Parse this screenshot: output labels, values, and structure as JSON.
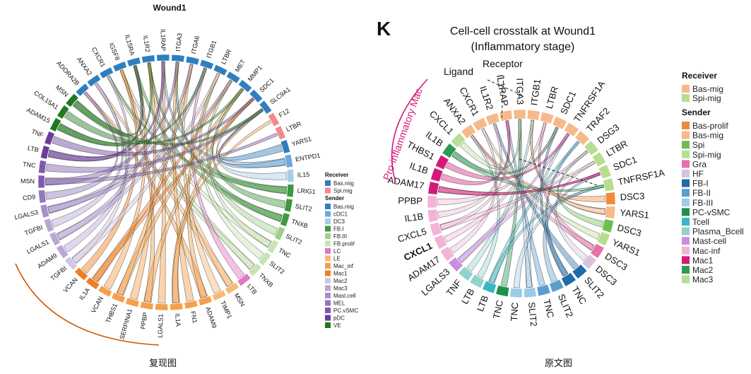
{
  "left": {
    "title": "Wound1",
    "caption": "复现图",
    "legend_receiver_title": "Receiver",
    "legend_sender_title": "Sender",
    "receivers": [
      {
        "name": "Bas.mig",
        "color": "#2f7fbf"
      },
      {
        "name": "Spi.mig",
        "color": "#f08a8f"
      }
    ],
    "senders": [
      {
        "name": "Bas.mig",
        "color": "#2f7fbf"
      },
      {
        "name": "cDC1",
        "color": "#6fa8dc"
      },
      {
        "name": "DC3",
        "color": "#a9cbe8"
      },
      {
        "name": "FB.I",
        "color": "#3c9a3c"
      },
      {
        "name": "FB.III",
        "color": "#9fd08a"
      },
      {
        "name": "FB.prolif",
        "color": "#c9e4b4"
      },
      {
        "name": "LC",
        "color": "#e377c2"
      },
      {
        "name": "LE",
        "color": "#f9b977"
      },
      {
        "name": "Mac_inf",
        "color": "#f5a04a"
      },
      {
        "name": "Mac1",
        "color": "#ee7f20"
      },
      {
        "name": "Mac2",
        "color": "#d3c6e3"
      },
      {
        "name": "Mac3",
        "color": "#b9a6d6"
      },
      {
        "name": "Mast.cell",
        "color": "#a590c9"
      },
      {
        "name": "MEL",
        "color": "#9278bd"
      },
      {
        "name": "PC.vSMC",
        "color": "#7e5aae"
      },
      {
        "name": "pDC",
        "color": "#6a3d9a"
      },
      {
        "name": "VE",
        "color": "#1f7a1f"
      }
    ],
    "sectors": [
      {
        "label": "ADORA2B",
        "color": "#2f7fbf"
      },
      {
        "label": "ANXA2",
        "color": "#2f7fbf"
      },
      {
        "label": "CXCR1",
        "color": "#2f7fbf"
      },
      {
        "label": "IGSF8",
        "color": "#2f7fbf"
      },
      {
        "label": "IL15RA",
        "color": "#2f7fbf"
      },
      {
        "label": "IL1R2",
        "color": "#2f7fbf"
      },
      {
        "label": "IL1RAP",
        "color": "#2f7fbf"
      },
      {
        "label": "ITGA3",
        "color": "#2f7fbf"
      },
      {
        "label": "ITGA6",
        "color": "#2f7fbf"
      },
      {
        "label": "ITGB1",
        "color": "#2f7fbf"
      },
      {
        "label": "LTBR",
        "color": "#2f7fbf"
      },
      {
        "label": "MET",
        "color": "#2f7fbf"
      },
      {
        "label": "MMP1",
        "color": "#2f7fbf"
      },
      {
        "label": "SDC1",
        "color": "#2f7fbf"
      },
      {
        "label": "SLC9A1",
        "color": "#2f7fbf"
      },
      {
        "label": "F12",
        "color": "#f08a8f"
      },
      {
        "label": "LTBR",
        "color": "#f08a8f"
      },
      {
        "label": "YARS1",
        "color": "#2f7fbf"
      },
      {
        "label": "ENTPD1",
        "color": "#6fa8dc"
      },
      {
        "label": "IL15",
        "color": "#a9cbe8"
      },
      {
        "label": "LRIG1",
        "color": "#3c9a3c"
      },
      {
        "label": "SLIT2",
        "color": "#3c9a3c"
      },
      {
        "label": "TNXB",
        "color": "#3c9a3c"
      },
      {
        "label": "SLIT2",
        "color": "#9fd08a"
      },
      {
        "label": "TNC",
        "color": "#c9e4b4"
      },
      {
        "label": "SLIT2",
        "color": "#c9e4b4"
      },
      {
        "label": "TNXB",
        "color": "#c9e4b4"
      },
      {
        "label": "LTB",
        "color": "#e377c2"
      },
      {
        "label": "MSN",
        "color": "#f9b977"
      },
      {
        "label": "TIMP1",
        "color": "#f9b977"
      },
      {
        "label": "ADAM9",
        "color": "#f5a04a"
      },
      {
        "label": "FN1",
        "color": "#f5a04a"
      },
      {
        "label": "IL1A",
        "color": "#f5a04a"
      },
      {
        "label": "LGALS1",
        "color": "#f5a04a"
      },
      {
        "label": "PPBP",
        "color": "#f5a04a"
      },
      {
        "label": "SERPINA1",
        "color": "#f5a04a"
      },
      {
        "label": "THBS1",
        "color": "#f5a04a"
      },
      {
        "label": "VCAN",
        "color": "#f5a04a"
      },
      {
        "label": "IL1A",
        "color": "#ee7f20"
      },
      {
        "label": "VCAN",
        "color": "#ee7f20"
      },
      {
        "label": "TGFBI",
        "color": "#d3c6e3"
      },
      {
        "label": "ADAM9",
        "color": "#b9a6d6"
      },
      {
        "label": "LGALS1",
        "color": "#b9a6d6"
      },
      {
        "label": "TGFBI",
        "color": "#b9a6d6"
      },
      {
        "label": "LGALS3",
        "color": "#a590c9"
      },
      {
        "label": "CD9",
        "color": "#9278bd"
      },
      {
        "label": "MSN",
        "color": "#7e5aae"
      },
      {
        "label": "TNC",
        "color": "#7e5aae"
      },
      {
        "label": "LTB",
        "color": "#6a3d9a"
      },
      {
        "label": "TNF",
        "color": "#6a3d9a"
      },
      {
        "label": "ADAM15",
        "color": "#1f7a1f"
      },
      {
        "label": "COL15A1",
        "color": "#1f7a1f"
      },
      {
        "label": "MSN",
        "color": "#1f7a1f"
      }
    ]
  },
  "right": {
    "panel_letter": "K",
    "title_line1": "Cell-cell crosstalk at Wound1",
    "title_line2": "(Inflammatory stage)",
    "annotation_ligand": "Ligand",
    "annotation_receptor": "Receptor",
    "annotation_group": "Pro-inflammatory Mac",
    "caption": "原文图",
    "legend_receiver_title": "Receiver",
    "legend_sender_title": "Sender",
    "receivers": [
      {
        "name": "Bas-mig",
        "color": "#f7b98a"
      },
      {
        "name": "Spi-mig",
        "color": "#b7de8f"
      }
    ],
    "senders": [
      {
        "name": "Bas-prolif",
        "color": "#f08a3a"
      },
      {
        "name": "Bas-mig",
        "color": "#f7b98a"
      },
      {
        "name": "Spi",
        "color": "#6cbf4e"
      },
      {
        "name": "Spi-mig",
        "color": "#b7de8f"
      },
      {
        "name": "Gra",
        "color": "#e96fa8"
      },
      {
        "name": "HF",
        "color": "#d6c3e0"
      },
      {
        "name": "FB-I",
        "color": "#1f6aa8"
      },
      {
        "name": "FB-II",
        "color": "#5a9ed0"
      },
      {
        "name": "FB-III",
        "color": "#9ccbe8"
      },
      {
        "name": "PC-vSMC",
        "color": "#1f8f4a"
      },
      {
        "name": "Tcell",
        "color": "#3db6c4"
      },
      {
        "name": "Plasma_Bcell",
        "color": "#8fd3cc"
      },
      {
        "name": "Mast-cell",
        "color": "#c88fe0"
      },
      {
        "name": "Mac-inf",
        "color": "#f2b3d6"
      },
      {
        "name": "Mac1",
        "color": "#d6187a"
      },
      {
        "name": "Mac2",
        "color": "#2e9a58"
      },
      {
        "name": "Mac3",
        "color": "#b5dd9c"
      }
    ],
    "sectors": [
      {
        "label": "ANXA2",
        "color": "#f7b98a"
      },
      {
        "label": "CXCR1",
        "color": "#f7b98a"
      },
      {
        "label": "IL1R2",
        "color": "#f7b98a"
      },
      {
        "label": "IL1RAP",
        "color": "#f7b98a"
      },
      {
        "label": "ITGA3",
        "color": "#f7b98a"
      },
      {
        "label": "ITGB1",
        "color": "#f7b98a"
      },
      {
        "label": "LTBR",
        "color": "#f7b98a"
      },
      {
        "label": "SDC1",
        "color": "#f7b98a"
      },
      {
        "label": "TNFRSF1A",
        "color": "#f7b98a"
      },
      {
        "label": "TRAF2",
        "color": "#f7b98a"
      },
      {
        "label": "DSG3",
        "color": "#b7de8f"
      },
      {
        "label": "LTBR",
        "color": "#b7de8f"
      },
      {
        "label": "SDC1",
        "color": "#b7de8f"
      },
      {
        "label": "TNFRSF1A",
        "color": "#b7de8f"
      },
      {
        "label": "DSC3",
        "color": "#f08a3a"
      },
      {
        "label": "YARS1",
        "color": "#f7b98a"
      },
      {
        "label": "DSC3",
        "color": "#6cbf4e"
      },
      {
        "label": "YARS1",
        "color": "#b7de8f"
      },
      {
        "label": "DSC3",
        "color": "#e96fa8"
      },
      {
        "label": "DSC3",
        "color": "#d6c3e0"
      },
      {
        "label": "SLIT2",
        "color": "#1f6aa8"
      },
      {
        "label": "TNC",
        "color": "#1f6aa8"
      },
      {
        "label": "SLIT2",
        "color": "#5a9ed0"
      },
      {
        "label": "TNC",
        "color": "#5a9ed0"
      },
      {
        "label": "SLIT2",
        "color": "#9ccbe8"
      },
      {
        "label": "TNC",
        "color": "#9ccbe8"
      },
      {
        "label": "TNC",
        "color": "#1f8f4a"
      },
      {
        "label": "LTB",
        "color": "#3db6c4"
      },
      {
        "label": "LTB",
        "color": "#8fd3cc"
      },
      {
        "label": "TNF",
        "color": "#8fd3cc"
      },
      {
        "label": "LGALS3",
        "color": "#c88fe0"
      },
      {
        "label": "ADAM17",
        "color": "#f2b3d6"
      },
      {
        "label": "CXCL1",
        "color": "#f2b3d6"
      },
      {
        "label": "CXCL5",
        "color": "#f2b3d6"
      },
      {
        "label": "IL1B",
        "color": "#f2b3d6"
      },
      {
        "label": "PPBP",
        "color": "#f2b3d6"
      },
      {
        "label": "ADAM17",
        "color": "#d6187a"
      },
      {
        "label": "IL1B",
        "color": "#d6187a"
      },
      {
        "label": "THBS1",
        "color": "#d6187a"
      },
      {
        "label": "IL1B",
        "color": "#2e9a58"
      },
      {
        "label": "CXCL1",
        "color": "#b5dd9c"
      }
    ]
  }
}
